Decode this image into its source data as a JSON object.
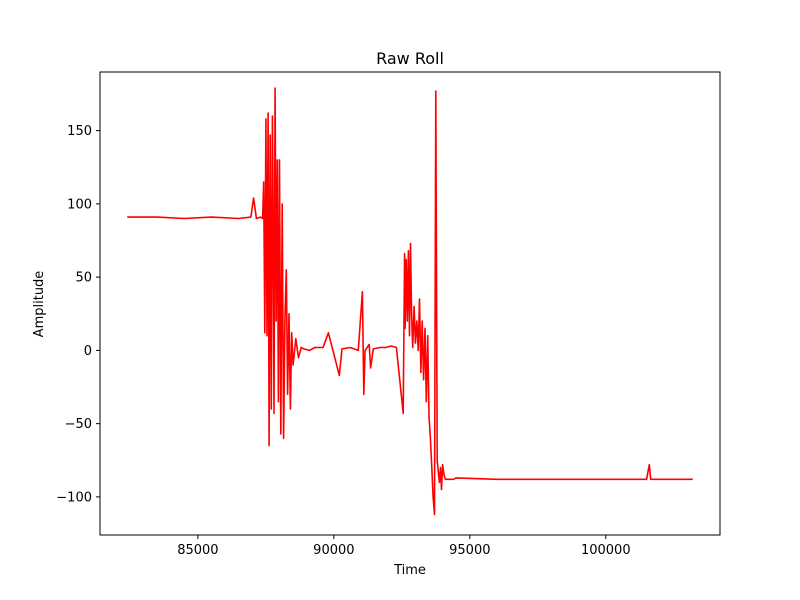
{
  "chart_data": {
    "type": "line",
    "title": "Raw Roll",
    "xlabel": "Time",
    "ylabel": "Amplitude",
    "xlim": [
      81400,
      104200
    ],
    "ylim": [
      -126,
      190
    ],
    "xticks": [
      85000,
      90000,
      95000,
      100000
    ],
    "xtick_labels": [
      "85000",
      "90000",
      "95000",
      "100000"
    ],
    "yticks": [
      -100,
      -50,
      0,
      50,
      100,
      150
    ],
    "ytick_labels": [
      "−100",
      "−50",
      "0",
      "50",
      "100",
      "150"
    ],
    "grid": false,
    "legend": "none",
    "series": [
      {
        "color": "#ff0000",
        "x": [
          82400,
          83500,
          84500,
          85500,
          86500,
          86950,
          87050,
          87150,
          87300,
          87380,
          87420,
          87460,
          87500,
          87540,
          87580,
          87620,
          87660,
          87700,
          87740,
          87760,
          87800,
          87840,
          87880,
          87920,
          87960,
          88000,
          88050,
          88100,
          88150,
          88200,
          88250,
          88300,
          88350,
          88400,
          88450,
          88500,
          88600,
          88700,
          88800,
          88900,
          89100,
          89300,
          89600,
          89800,
          90200,
          90300,
          90600,
          90900,
          91050,
          91100,
          91150,
          91300,
          91350,
          91450,
          91700,
          91900,
          92100,
          92300,
          92550,
          92600,
          92620,
          92660,
          92700,
          92740,
          92780,
          92820,
          92860,
          92900,
          92950,
          93000,
          93050,
          93100,
          93150,
          93200,
          93250,
          93300,
          93350,
          93400,
          93450,
          93500,
          93550,
          93600,
          93650,
          93700,
          93750,
          93800,
          93850,
          93880,
          93920,
          93960,
          94000,
          94050,
          94100,
          94200,
          94300,
          94400,
          94500,
          96000,
          98000,
          100000,
          101500,
          101600,
          101650,
          101700,
          102500,
          103200
        ],
        "y": [
          91,
          91,
          90,
          91,
          90,
          91,
          104,
          90,
          91,
          90,
          115,
          12,
          158,
          10,
          162,
          -65,
          147,
          -40,
          160,
          120,
          -43,
          179,
          20,
          130,
          -35,
          130,
          -57,
          100,
          -60,
          20,
          55,
          -30,
          25,
          -40,
          12,
          -10,
          8,
          -5,
          2,
          1,
          0,
          2,
          2,
          12,
          -17,
          1,
          2,
          0,
          40,
          -30,
          0,
          4,
          -12,
          1,
          2,
          2,
          3,
          2,
          -43,
          66,
          15,
          62,
          20,
          68,
          10,
          73,
          25,
          2,
          30,
          5,
          20,
          0,
          35,
          -15,
          20,
          -20,
          15,
          -35,
          10,
          -45,
          -60,
          -80,
          -100,
          -112,
          177,
          -75,
          -85,
          -90,
          -80,
          -95,
          -78,
          -85,
          -88,
          -88,
          -88,
          -88,
          -87,
          -88,
          -88,
          -88,
          -88,
          -78,
          -88,
          -88,
          -88,
          -88
        ]
      }
    ]
  }
}
